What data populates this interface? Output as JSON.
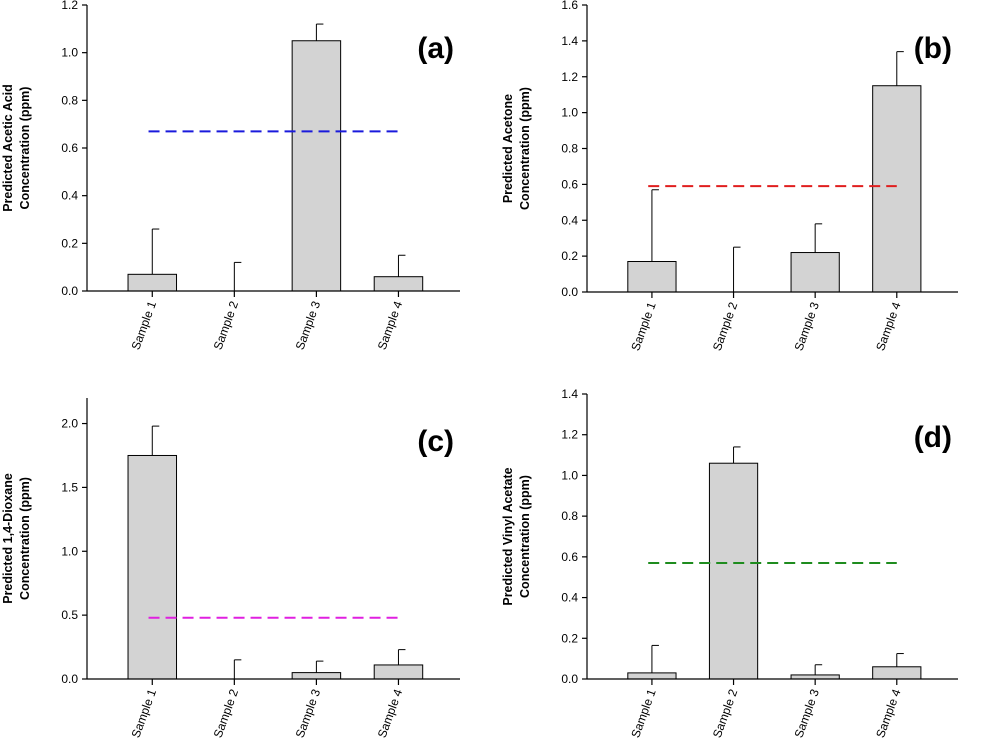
{
  "chart_data": [
    {
      "type": "bar",
      "panel_label": "(a)",
      "ylabel_lines": [
        "Predicted Acetic Acid",
        "Concentration (ppm)"
      ],
      "categories": [
        "Sample 1",
        "Sample 2",
        "Sample 3",
        "Sample 4"
      ],
      "values": [
        0.07,
        0.0,
        1.05,
        0.06
      ],
      "errors": [
        0.19,
        0.12,
        0.07,
        0.09
      ],
      "ylim": [
        0,
        1.2
      ],
      "yticks": [
        0.0,
        0.2,
        0.4,
        0.6,
        0.8,
        1.0,
        1.2
      ],
      "ytick_labels": [
        "0.0",
        "0.2",
        "0.4",
        "0.6",
        "0.8",
        "1.0",
        "1.2"
      ],
      "reference_line": {
        "value": 0.67,
        "color": "#1a1adc",
        "style": "dashed"
      },
      "bar_color": "#d3d3d3"
    },
    {
      "type": "bar",
      "panel_label": "(b)",
      "ylabel_lines": [
        "Predicted Acetone",
        "Concentration (ppm)"
      ],
      "categories": [
        "Sample 1",
        "Sample 2",
        "Sample 3",
        "Sample 4"
      ],
      "values": [
        0.17,
        0.0,
        0.22,
        1.15
      ],
      "errors": [
        0.4,
        0.25,
        0.16,
        0.19
      ],
      "ylim": [
        0,
        1.6
      ],
      "yticks": [
        0.0,
        0.2,
        0.4,
        0.6,
        0.8,
        1.0,
        1.2,
        1.4,
        1.6
      ],
      "ytick_labels": [
        "0.0",
        "0.2",
        "0.4",
        "0.6",
        "0.8",
        "1.0",
        "1.2",
        "1.4",
        "1.6"
      ],
      "reference_line": {
        "value": 0.59,
        "color": "#e01e1e",
        "style": "dashed"
      },
      "bar_color": "#d3d3d3"
    },
    {
      "type": "bar",
      "panel_label": "(c)",
      "ylabel_lines": [
        "Predicted 1,4-Dioxane",
        "Concentration (ppm)"
      ],
      "categories": [
        "Sample 1",
        "Sample 2",
        "Sample 3",
        "Sample 4"
      ],
      "values": [
        1.75,
        0.0,
        0.05,
        0.11
      ],
      "errors": [
        0.23,
        0.15,
        0.09,
        0.12
      ],
      "ylim": [
        0,
        2.2
      ],
      "yticks": [
        0.0,
        0.5,
        1.0,
        1.5,
        2.0
      ],
      "ytick_labels": [
        "0.0",
        "0.5",
        "1.0",
        "1.5",
        "2.0"
      ],
      "reference_line": {
        "value": 0.48,
        "color": "#e020e0",
        "style": "dashed"
      },
      "bar_color": "#d3d3d3"
    },
    {
      "type": "bar",
      "panel_label": "(d)",
      "ylabel_lines": [
        "Predicted Vinyl Acetate",
        "Concentration (ppm)"
      ],
      "categories": [
        "Sample 1",
        "Sample 2",
        "Sample 3",
        "Sample 4"
      ],
      "values": [
        0.03,
        1.06,
        0.02,
        0.06
      ],
      "errors": [
        0.135,
        0.08,
        0.05,
        0.065
      ],
      "ylim": [
        0,
        1.4
      ],
      "yticks": [
        0.0,
        0.2,
        0.4,
        0.6,
        0.8,
        1.0,
        1.2,
        1.4
      ],
      "ytick_labels": [
        "0.0",
        "0.2",
        "0.4",
        "0.6",
        "0.8",
        "1.0",
        "1.2",
        "1.4"
      ],
      "reference_line": {
        "value": 0.57,
        "color": "#1e8c1e",
        "style": "dashed"
      },
      "bar_color": "#d3d3d3"
    }
  ]
}
